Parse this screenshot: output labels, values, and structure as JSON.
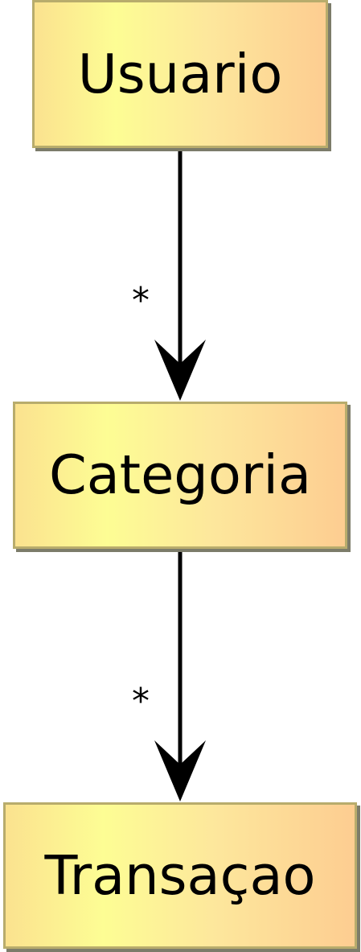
{
  "diagram": {
    "nodes": [
      {
        "id": "usuario",
        "label": "Usuario"
      },
      {
        "id": "categoria",
        "label": "Categoria"
      },
      {
        "id": "transacao",
        "label": "Transaçao"
      }
    ],
    "edges": [
      {
        "from": "usuario",
        "to": "categoria",
        "multiplicity": "*"
      },
      {
        "from": "categoria",
        "to": "transacao",
        "multiplicity": "*"
      }
    ]
  },
  "colors": {
    "node_border": "#b8ac6c",
    "node_gradient": [
      "#fbe28f",
      "#fdfd94",
      "#fde79c",
      "#fdcd91"
    ],
    "node_shadow": "#7c7c6a",
    "edge": "#000000"
  }
}
